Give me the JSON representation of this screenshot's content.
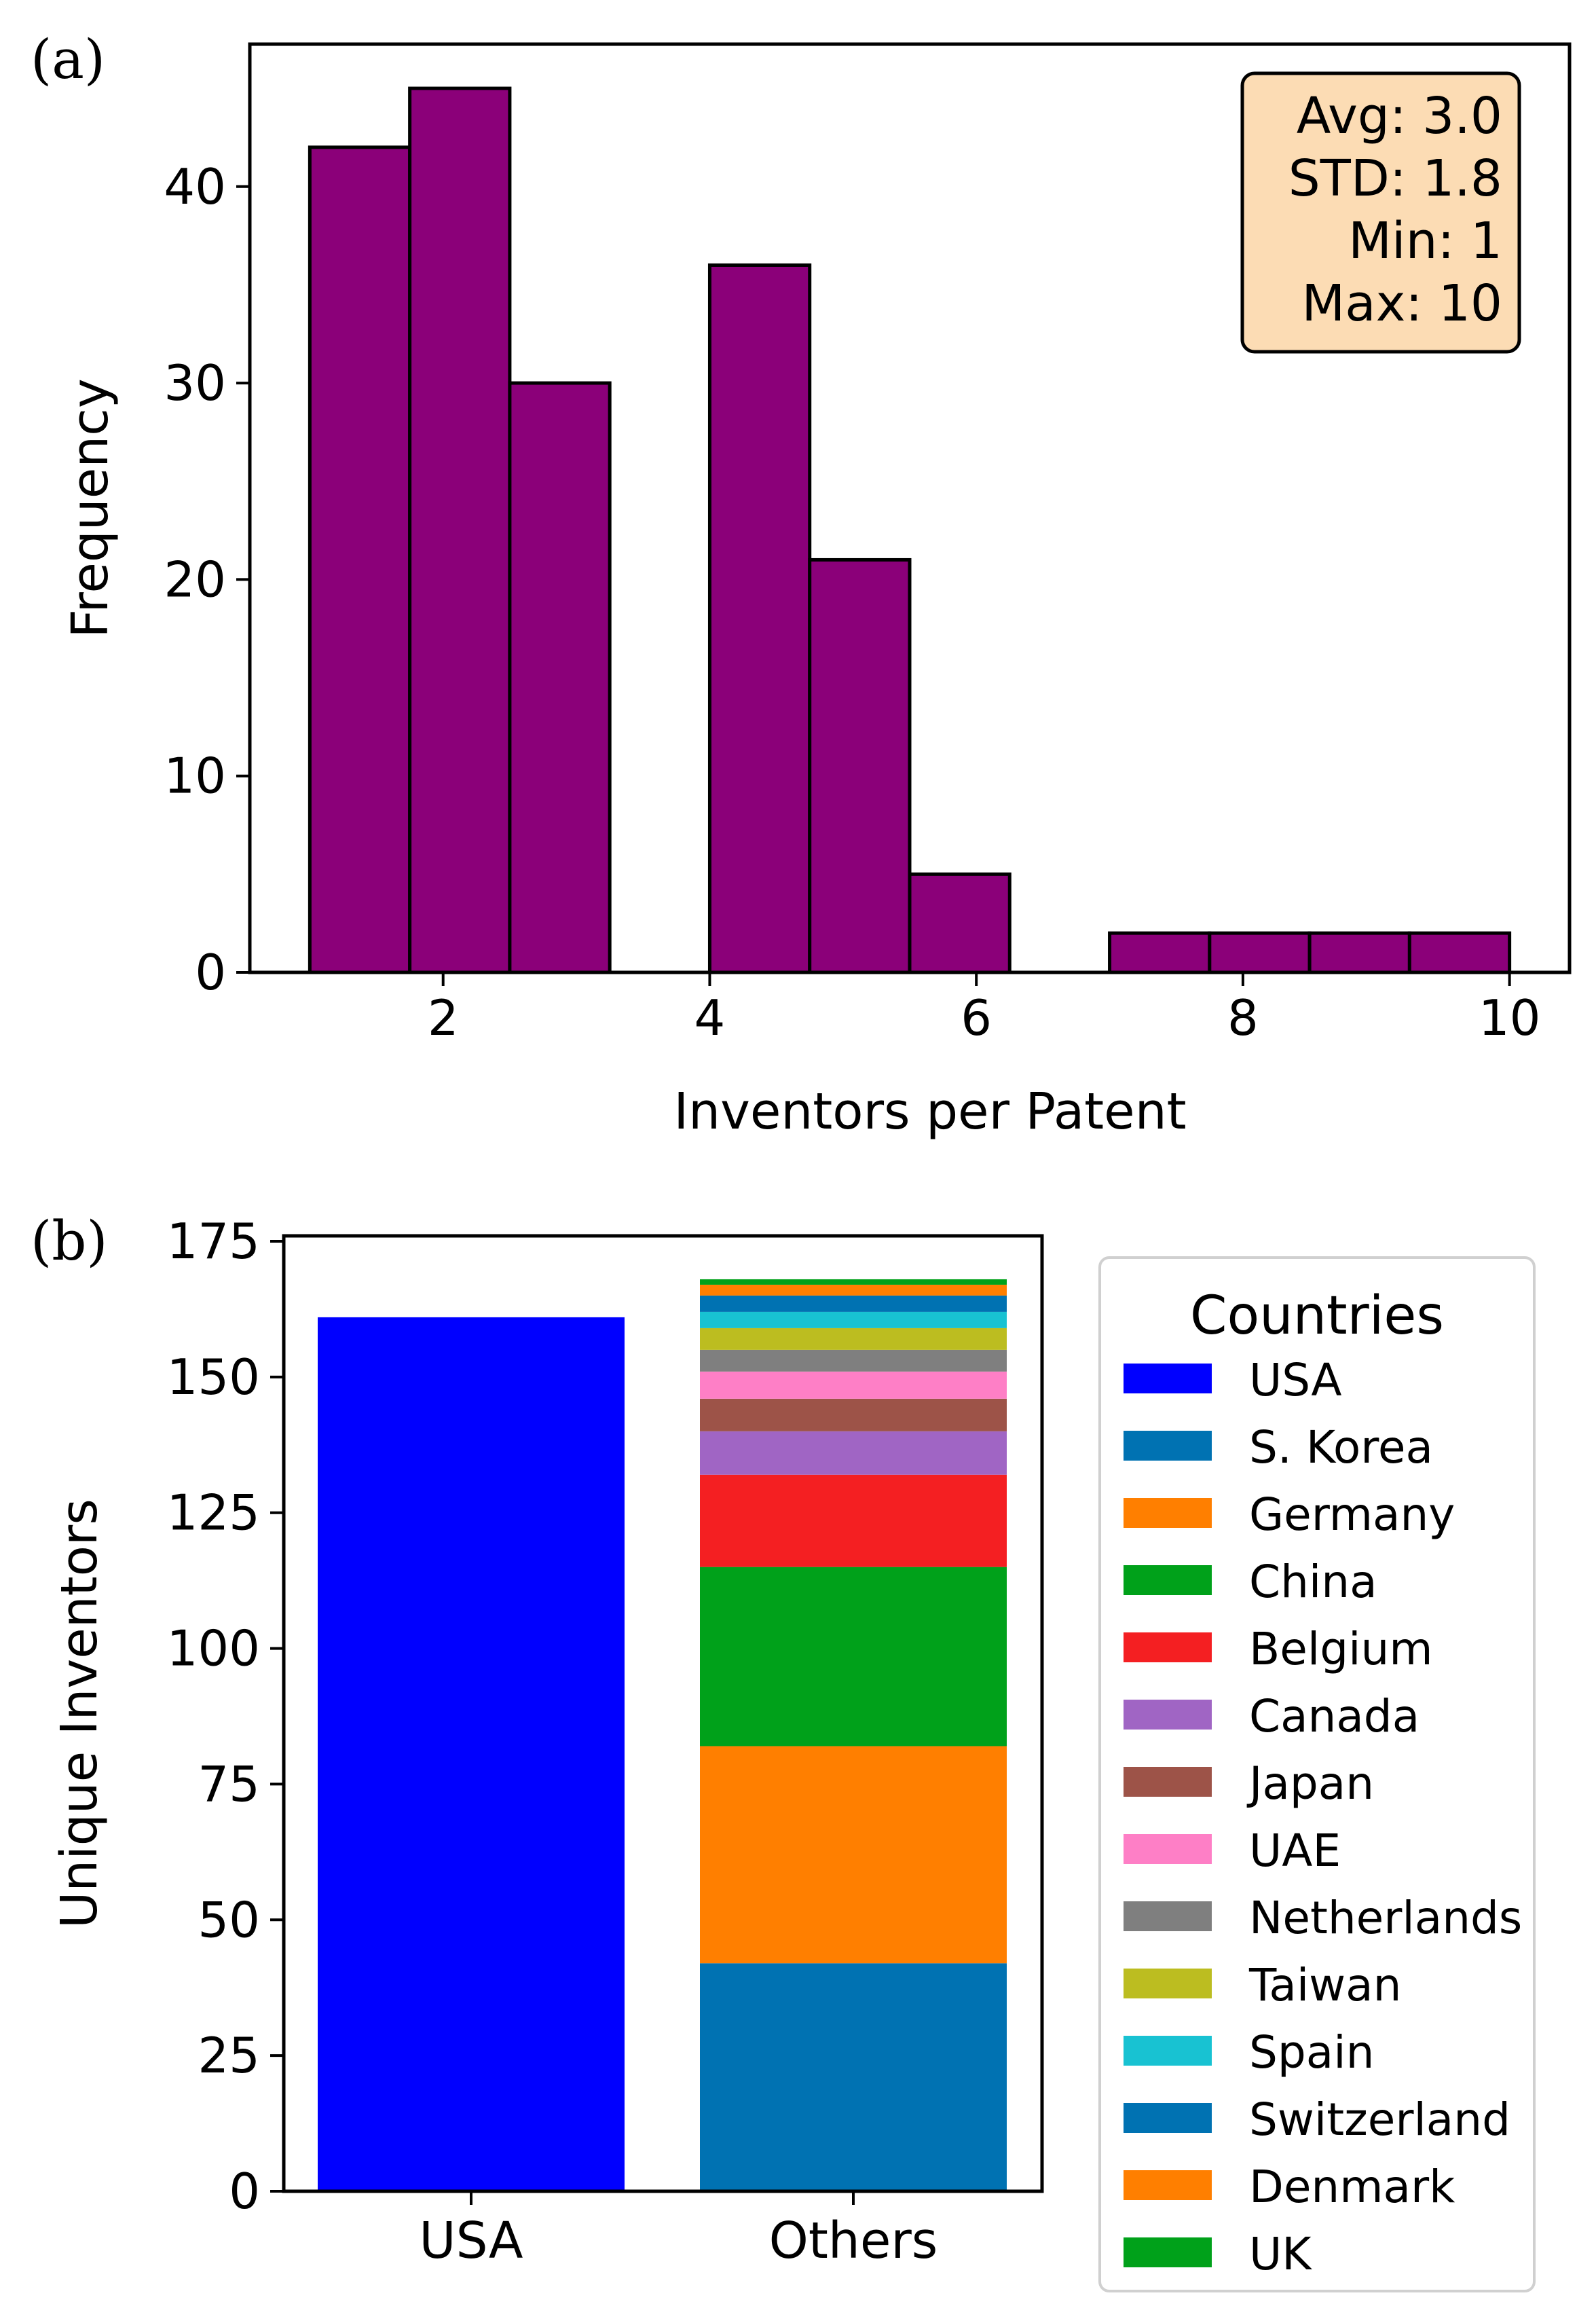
{
  "panels": [
    {
      "label": "(a)"
    },
    {
      "label": "(b)"
    }
  ],
  "chart_data": [
    {
      "type": "bar",
      "chart_kind": "histogram",
      "xlabel": "Inventors per Patent",
      "ylabel": "Frequency",
      "xlim": [
        0.55,
        10.45
      ],
      "ylim": [
        0,
        47.25
      ],
      "xticks": [
        2,
        4,
        6,
        8,
        10
      ],
      "yticks": [
        0,
        10,
        20,
        30,
        40
      ],
      "bin_edges": [
        1,
        1.75,
        2.5,
        3.25,
        4,
        4.75,
        5.5,
        6.25,
        7,
        7.75,
        8.5,
        9.25,
        10
      ],
      "values": [
        42,
        45,
        30,
        0,
        36,
        21,
        5,
        0,
        2,
        2,
        2,
        2
      ],
      "bar_color": "#8b0079",
      "edge_color": "#000000",
      "stats_box": {
        "lines": [
          "Avg: 3.0",
          "STD: 1.8",
          "Min: 1",
          "Max: 10"
        ],
        "background": "#fcdcb4",
        "placement": "top-right"
      }
    },
    {
      "type": "bar",
      "stacked": true,
      "categories": [
        "USA",
        "Others"
      ],
      "ylabel": "Unique Inventors",
      "xlabel": "",
      "ylim": [
        0,
        176
      ],
      "yticks": [
        0,
        25,
        50,
        75,
        100,
        125,
        150,
        175
      ],
      "legend": {
        "title": "Countries",
        "placement": "outside-right"
      },
      "series": [
        {
          "name": "USA",
          "color": "#0000ff",
          "values": [
            161,
            0
          ]
        },
        {
          "name": "S. Korea",
          "color": "#0072b2",
          "values": [
            0,
            42
          ]
        },
        {
          "name": "Germany",
          "color": "#ff7f00",
          "values": [
            0,
            40
          ]
        },
        {
          "name": "China",
          "color": "#00a11a",
          "values": [
            0,
            33
          ]
        },
        {
          "name": "Belgium",
          "color": "#f41f22",
          "values": [
            0,
            17
          ]
        },
        {
          "name": "Canada",
          "color": "#a065c4",
          "values": [
            0,
            8
          ]
        },
        {
          "name": "Japan",
          "color": "#9d5348",
          "values": [
            0,
            6
          ]
        },
        {
          "name": "UAE",
          "color": "#fe7fc6",
          "values": [
            0,
            5
          ]
        },
        {
          "name": "Netherlands",
          "color": "#7f7f7f",
          "values": [
            0,
            4
          ]
        },
        {
          "name": "Taiwan",
          "color": "#bcbd20",
          "values": [
            0,
            4
          ]
        },
        {
          "name": "Spain",
          "color": "#18c2d2",
          "values": [
            0,
            3
          ]
        },
        {
          "name": "Switzerland",
          "color": "#0072b2",
          "values": [
            0,
            3
          ]
        },
        {
          "name": "Denmark",
          "color": "#ff7f00",
          "values": [
            0,
            2
          ]
        },
        {
          "name": "UK",
          "color": "#00a11a",
          "values": [
            0,
            1
          ]
        }
      ]
    }
  ]
}
